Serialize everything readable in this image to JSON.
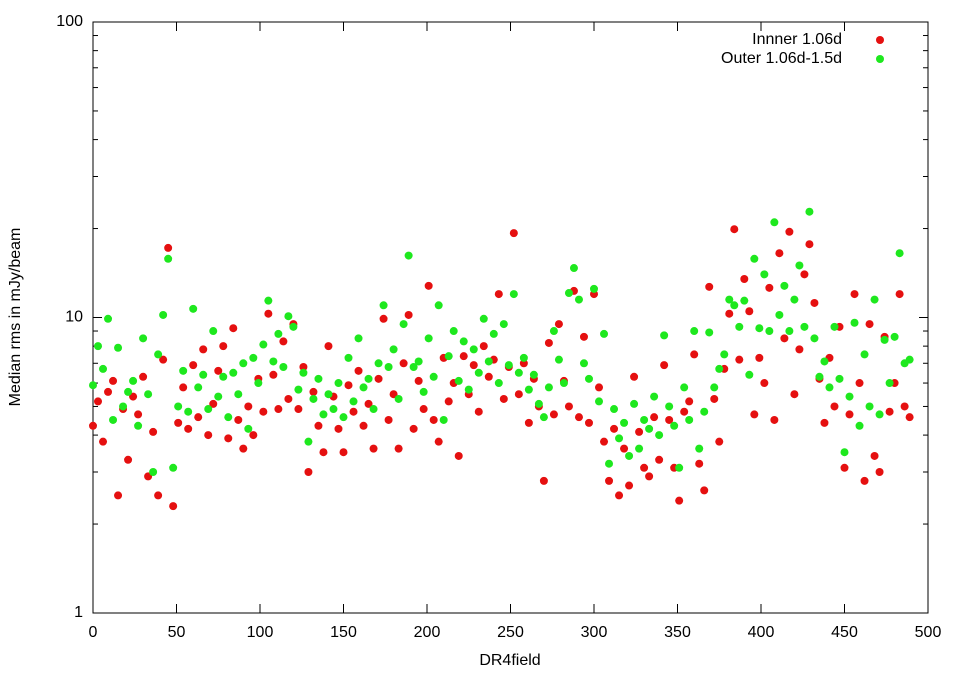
{
  "chart_data": {
    "type": "scatter",
    "x_label": "DR4field",
    "y_label": "Median rms in mJy/beam",
    "log_y": true,
    "legend": "top-right",
    "xlim": [
      0,
      500
    ],
    "xticks": [
      0,
      50,
      100,
      150,
      200,
      250,
      300,
      350,
      400,
      450,
      500
    ],
    "ylim": [
      1,
      100
    ],
    "yticks": [
      1,
      10,
      100
    ],
    "y_minor_ticks": [
      2,
      3,
      4,
      5,
      6,
      7,
      8,
      9,
      20,
      30,
      40,
      50,
      60,
      70,
      80,
      90
    ],
    "x": [
      0,
      3,
      6,
      9,
      12,
      15,
      18,
      21,
      24,
      27,
      30,
      33,
      36,
      39,
      42,
      45,
      48,
      51,
      54,
      57,
      60,
      63,
      66,
      69,
      72,
      75,
      78,
      81,
      84,
      87,
      90,
      93,
      96,
      99,
      102,
      105,
      108,
      111,
      114,
      117,
      120,
      123,
      126,
      129,
      132,
      135,
      138,
      141,
      144,
      147,
      150,
      153,
      156,
      159,
      162,
      165,
      168,
      171,
      174,
      177,
      180,
      183,
      186,
      189,
      192,
      195,
      198,
      201,
      204,
      207,
      210,
      213,
      216,
      219,
      222,
      225,
      228,
      231,
      234,
      237,
      240,
      243,
      246,
      249,
      252,
      255,
      258,
      261,
      264,
      267,
      270,
      273,
      276,
      279,
      282,
      285,
      288,
      291,
      294,
      297,
      300,
      303,
      306,
      309,
      312,
      315,
      318,
      321,
      324,
      327,
      330,
      333,
      336,
      339,
      342,
      345,
      348,
      351,
      354,
      357,
      360,
      363,
      366,
      369,
      372,
      375,
      378,
      381,
      384,
      387,
      390,
      393,
      396,
      399,
      402,
      405,
      408,
      411,
      414,
      417,
      420,
      423,
      426,
      429,
      432,
      435,
      438,
      441,
      444,
      447,
      450,
      453,
      456,
      459,
      462,
      465,
      468,
      471,
      474,
      477,
      480,
      483,
      486,
      489
    ],
    "series": [
      {
        "name": "Innner 1.06d",
        "color": "#e51010",
        "values": [
          4.3,
          5.2,
          3.8,
          5.6,
          6.1,
          2.5,
          4.9,
          3.3,
          5.4,
          4.7,
          6.3,
          2.9,
          4.1,
          2.5,
          7.2,
          17.2,
          2.3,
          4.4,
          5.8,
          4.2,
          6.9,
          4.6,
          7.8,
          4.0,
          5.1,
          6.6,
          8.0,
          3.9,
          9.2,
          4.5,
          3.6,
          5.0,
          4.0,
          6.2,
          4.8,
          10.3,
          6.4,
          4.9,
          8.3,
          5.3,
          9.5,
          4.9,
          6.8,
          3.0,
          5.6,
          4.3,
          3.5,
          8.0,
          5.4,
          4.2,
          3.5,
          5.9,
          4.8,
          6.6,
          4.3,
          5.1,
          3.6,
          6.2,
          9.9,
          4.5,
          5.5,
          3.6,
          7.0,
          10.2,
          4.2,
          6.1,
          4.9,
          12.8,
          4.5,
          3.8,
          7.3,
          5.2,
          6.0,
          3.4,
          7.4,
          5.5,
          6.9,
          4.8,
          8.0,
          6.3,
          7.2,
          12.0,
          5.3,
          6.8,
          19.3,
          5.5,
          7.0,
          4.4,
          6.2,
          5.0,
          2.8,
          8.2,
          4.7,
          9.5,
          6.1,
          5.0,
          12.3,
          4.6,
          8.6,
          4.4,
          12.0,
          5.8,
          3.8,
          2.8,
          4.2,
          2.5,
          3.6,
          2.7,
          6.3,
          4.1,
          3.1,
          2.9,
          4.6,
          3.3,
          6.9,
          4.5,
          3.1,
          2.4,
          4.8,
          5.2,
          7.5,
          3.2,
          2.6,
          12.7,
          5.3,
          3.8,
          6.7,
          10.3,
          19.9,
          7.2,
          13.5,
          10.5,
          4.7,
          7.3,
          6.0,
          12.6,
          4.5,
          16.5,
          8.5,
          19.5,
          5.5,
          7.8,
          14.0,
          17.7,
          11.2,
          6.2,
          4.4,
          7.3,
          5.0,
          9.3,
          3.1,
          4.7,
          12.0,
          6.0,
          2.8,
          9.5,
          3.4,
          3.0,
          8.6,
          4.8,
          6.0,
          12.0,
          5.0,
          4.6
        ]
      },
      {
        "name": "Outer 1.06d-1.5d",
        "color": "#1ee81e",
        "values": [
          5.9,
          8.0,
          6.7,
          9.9,
          4.5,
          7.9,
          5.0,
          5.6,
          6.1,
          4.3,
          8.5,
          5.5,
          3.0,
          7.5,
          10.2,
          15.8,
          3.1,
          5.0,
          6.6,
          4.8,
          10.7,
          5.8,
          6.4,
          4.9,
          9.0,
          5.4,
          6.3,
          4.6,
          6.5,
          5.5,
          7.0,
          4.2,
          7.3,
          6.0,
          8.1,
          11.4,
          7.1,
          8.8,
          6.8,
          10.1,
          9.3,
          5.7,
          6.5,
          3.8,
          5.3,
          6.2,
          4.7,
          5.5,
          4.9,
          6.0,
          4.6,
          7.3,
          5.2,
          8.5,
          5.8,
          6.2,
          4.9,
          7.0,
          11.0,
          6.8,
          7.8,
          5.3,
          9.5,
          16.2,
          6.8,
          7.1,
          5.6,
          8.5,
          6.3,
          11.0,
          4.5,
          7.4,
          9.0,
          6.1,
          8.3,
          5.7,
          7.8,
          6.5,
          9.9,
          7.1,
          8.8,
          6.0,
          9.5,
          6.9,
          12.0,
          6.5,
          7.3,
          5.7,
          6.4,
          5.1,
          4.6,
          5.8,
          9.0,
          7.2,
          6.0,
          12.1,
          14.7,
          11.5,
          7.0,
          6.2,
          12.5,
          5.2,
          8.8,
          3.2,
          4.9,
          3.9,
          4.4,
          3.4,
          5.1,
          3.6,
          4.5,
          4.2,
          5.4,
          4.0,
          8.7,
          5.0,
          4.3,
          3.1,
          5.8,
          4.5,
          9.0,
          3.6,
          4.8,
          8.9,
          5.8,
          6.7,
          7.5,
          11.5,
          11.0,
          9.3,
          11.4,
          6.4,
          15.8,
          9.2,
          14.0,
          9.0,
          21.0,
          10.2,
          12.8,
          9.0,
          11.5,
          15.0,
          9.3,
          22.8,
          8.5,
          6.3,
          7.1,
          5.8,
          9.3,
          6.2,
          3.5,
          5.4,
          9.6,
          4.3,
          7.5,
          5.0,
          11.5,
          4.7,
          8.4,
          6.0,
          8.6,
          16.5,
          7.0,
          7.2
        ]
      }
    ]
  }
}
